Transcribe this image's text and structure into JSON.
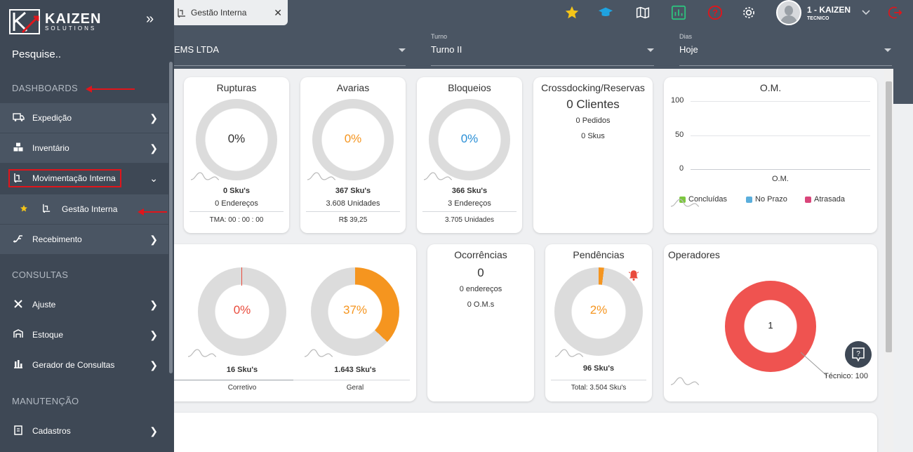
{
  "brand": {
    "name": "KAIZEN",
    "tagline": "SOLUTIONS"
  },
  "sidebar": {
    "search_placeholder": "Pesquise..",
    "sections": {
      "dashboards": "DASHBOARDS",
      "consultas": "CONSULTAS",
      "manutencao": "MANUTENÇÃO"
    },
    "items": [
      {
        "label": "Expedição",
        "icon": "truck-icon"
      },
      {
        "label": "Inventário",
        "icon": "boxes-icon"
      },
      {
        "label": "Movimentação Interna",
        "icon": "forklift-icon"
      },
      {
        "label": "Gestão Interna",
        "icon": "forklift-icon"
      },
      {
        "label": "Recebimento",
        "icon": "receive-icon"
      },
      {
        "label": "Ajuste",
        "icon": "tools-icon"
      },
      {
        "label": "Estoque",
        "icon": "warehouse-icon"
      },
      {
        "label": "Gerador de Consultas",
        "icon": "bar-chart-icon"
      },
      {
        "label": "Cadastros",
        "icon": "form-icon"
      }
    ]
  },
  "tab": {
    "label": "Gestão Interna"
  },
  "user": {
    "name": "1 - KAIZEN",
    "role": "TECNICO"
  },
  "filters": {
    "company": {
      "value": "EMS LTDA"
    },
    "turno": {
      "label": "Turno",
      "value": "Turno II"
    },
    "dias": {
      "label": "Dias",
      "value": "Hoje"
    }
  },
  "cards": {
    "rupturas": {
      "title": "Rupturas",
      "pct": "0%",
      "skus": "0 Sku's",
      "sub": "0 Endereços",
      "footer": "TMA:  00 : 00 : 00"
    },
    "avarias": {
      "title": "Avarias",
      "pct": "0%",
      "skus": "367 Sku's",
      "sub": "3.608 Unidades",
      "footer": "R$ 39,25"
    },
    "bloqueios": {
      "title": "Bloqueios",
      "pct": "0%",
      "skus": "366 Sku's",
      "sub": "3 Endereços",
      "footer": "3.705 Unidades"
    },
    "crossdocking": {
      "title": "Crossdocking/Reservas",
      "big": "0 Clientes",
      "line1": "0 Pedidos",
      "line2": "0 Skus"
    },
    "om": {
      "title": "O.M.",
      "y_ticks": [
        "100",
        "50",
        "0"
      ],
      "x_label": "O.M.",
      "legend": [
        "Concluídas",
        "No Prazo",
        "Atrasada"
      ]
    },
    "corretivo": {
      "pct": "0%",
      "skus": "16 Sku's",
      "footer": "Corretivo"
    },
    "geral": {
      "pct": "37%",
      "pct_value": 0.37,
      "skus": "1.643 Sku's",
      "footer": "Geral"
    },
    "ocorrencias": {
      "title": "Ocorrências",
      "big": "0",
      "line1": "0 endereços",
      "line2": "0 O.M.s"
    },
    "pendencias": {
      "title": "Pendências",
      "pct": "2%",
      "pct_value": 0.02,
      "skus": "96 Sku's",
      "footer": "Total: 3.504 Sku's"
    },
    "operadores": {
      "title": "Operadores",
      "center": "1",
      "tooltip": "Técnico: 100"
    }
  },
  "colors": {
    "orange": "#f5951f",
    "blue": "#2a8fd6",
    "red": "#e94b3c",
    "grey": "#dcdcdc",
    "accent_red": "#e0151b",
    "star": "#f5c518"
  }
}
